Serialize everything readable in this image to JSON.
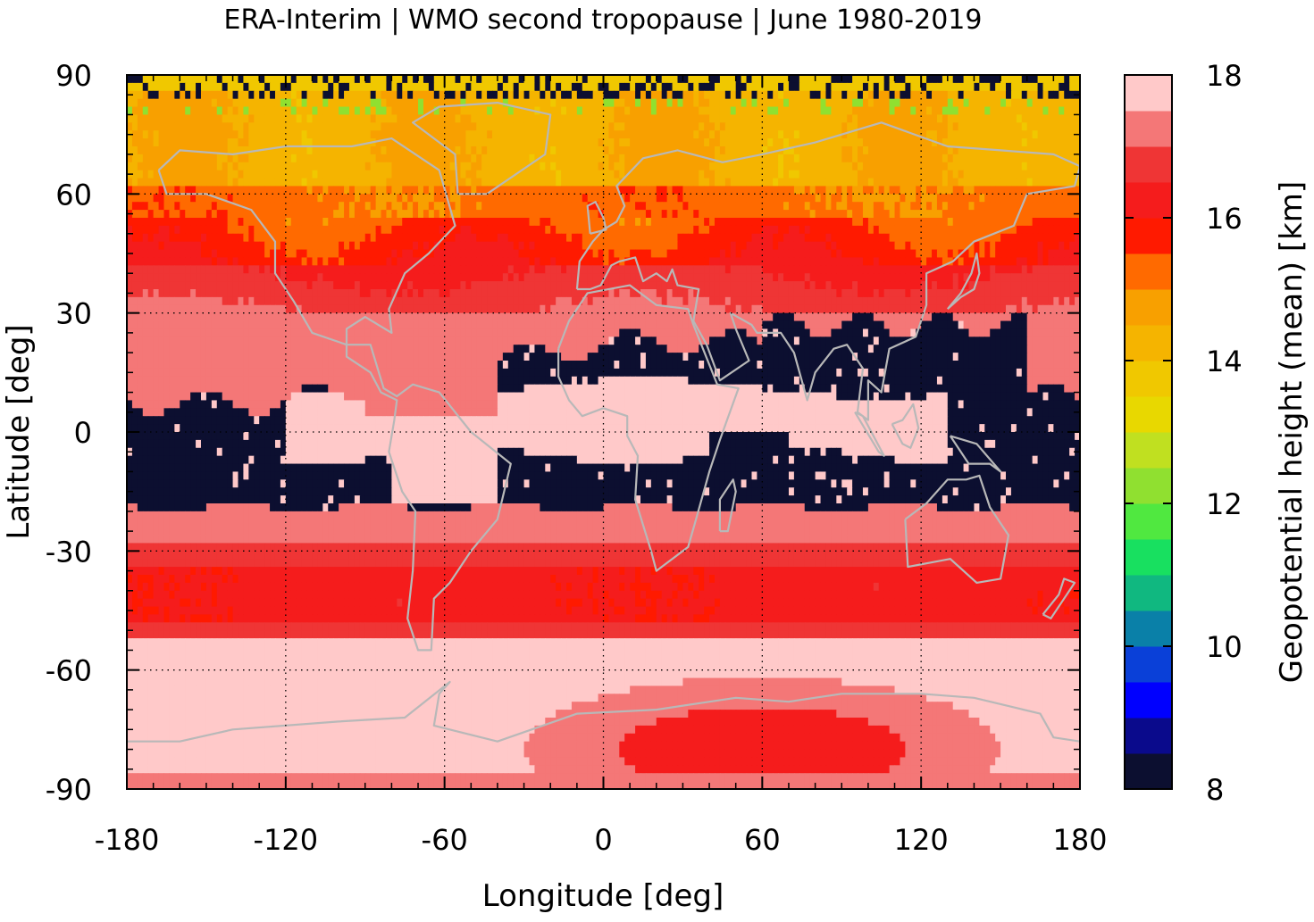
{
  "chart_data": {
    "type": "heatmap",
    "title": "ERA-Interim | WMO second tropopause | June 1980-2019",
    "xlabel": "Longitude [deg]",
    "ylabel": "Latitude [deg]",
    "colorbar_label": "Geopotential height (mean) [km]",
    "xlim": [
      -180,
      180
    ],
    "ylim": [
      -90,
      90
    ],
    "xticks": [
      -180,
      -120,
      -60,
      0,
      60,
      120,
      180
    ],
    "yticks": [
      -90,
      -60,
      -30,
      0,
      30,
      60,
      90
    ],
    "xtick_labels": [
      "-180",
      "-120",
      "-60",
      "0",
      "60",
      "120",
      "180"
    ],
    "ytick_labels": [
      "-90",
      "-60",
      "-30",
      "0",
      "30",
      "60",
      "90"
    ],
    "grid": true,
    "colorbar": {
      "range": [
        8,
        18
      ],
      "ticks": [
        8,
        10,
        12,
        14,
        16,
        18
      ],
      "tick_labels": [
        "8",
        "10",
        "12",
        "14",
        "16",
        "18"
      ],
      "levels": [
        {
          "from": 8.0,
          "to": 8.5,
          "color": "#0c0f30"
        },
        {
          "from": 8.5,
          "to": 9.0,
          "color": "#0a0a8c"
        },
        {
          "from": 9.0,
          "to": 9.5,
          "color": "#0000ff"
        },
        {
          "from": 9.5,
          "to": 10.0,
          "color": "#0a40d8"
        },
        {
          "from": 10.0,
          "to": 10.5,
          "color": "#0a80a8"
        },
        {
          "from": 10.5,
          "to": 11.0,
          "color": "#10b880"
        },
        {
          "from": 11.0,
          "to": 11.5,
          "color": "#18e060"
        },
        {
          "from": 11.5,
          "to": 12.0,
          "color": "#50e840"
        },
        {
          "from": 12.0,
          "to": 12.5,
          "color": "#90e030"
        },
        {
          "from": 12.5,
          "to": 13.0,
          "color": "#c0e020"
        },
        {
          "from": 13.0,
          "to": 13.5,
          "color": "#e8d800"
        },
        {
          "from": 13.5,
          "to": 14.0,
          "color": "#f0c800"
        },
        {
          "from": 14.0,
          "to": 14.5,
          "color": "#f5b400"
        },
        {
          "from": 14.5,
          "to": 15.0,
          "color": "#f8a000"
        },
        {
          "from": 15.0,
          "to": 15.5,
          "color": "#ff6a00"
        },
        {
          "from": 15.5,
          "to": 16.0,
          "color": "#ff1a00"
        },
        {
          "from": 16.0,
          "to": 16.5,
          "color": "#f51c1c"
        },
        {
          "from": 16.5,
          "to": 17.0,
          "color": "#ef3535"
        },
        {
          "from": 17.0,
          "to": 17.5,
          "color": "#f47777"
        },
        {
          "from": 17.5,
          "to": 18.0,
          "color": "#ffc9c9"
        }
      ]
    },
    "zonal_mean_profile_km": {
      "lat": [
        -90,
        -80,
        -70,
        -60,
        -50,
        -40,
        -30,
        -20,
        -15,
        -10,
        0,
        10,
        20,
        25,
        30,
        40,
        50,
        60,
        70,
        80,
        90
      ],
      "height": [
        17.2,
        17.7,
        17.8,
        17.8,
        16.6,
        15.8,
        15.9,
        16.6,
        8.2,
        8.2,
        17.8,
        8.2,
        17.4,
        17.3,
        17.0,
        16.0,
        15.4,
        14.6,
        14.4,
        14.1,
        13.8
      ]
    },
    "coastline_color": "#b8b8b8",
    "missing_color": "#0c0f30"
  }
}
